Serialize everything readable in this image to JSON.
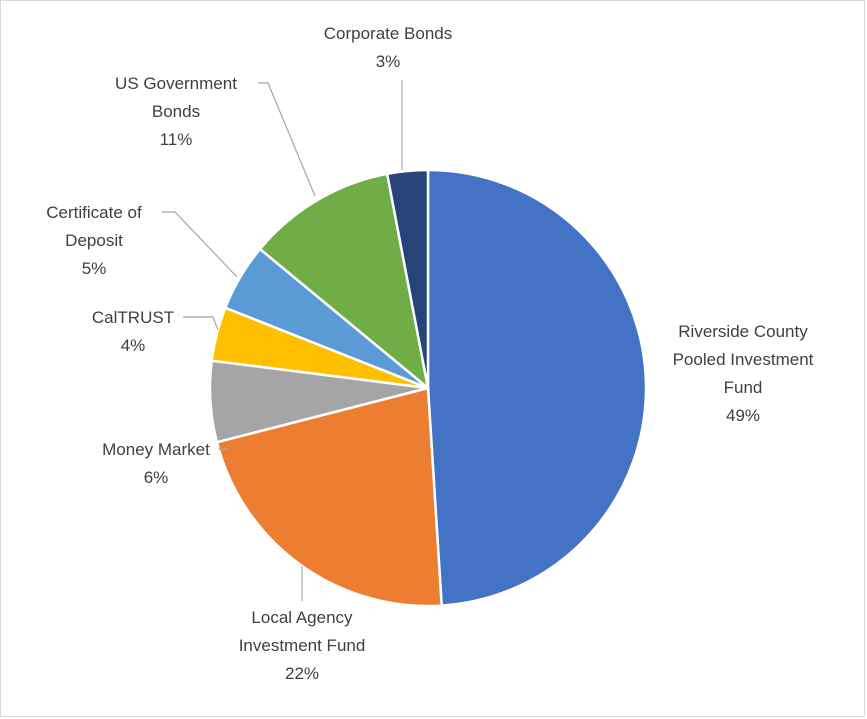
{
  "chart_data": {
    "type": "pie",
    "title": "",
    "slices": [
      {
        "name": "Riverside County Pooled Investment Fund",
        "label_lines": [
          "Riverside County",
          "Pooled Investment",
          "Fund"
        ],
        "value": 49,
        "value_label": "49%",
        "color": "#4472c4"
      },
      {
        "name": "Local Agency Investment Fund",
        "label_lines": [
          "Local Agency",
          "Investment Fund"
        ],
        "value": 22,
        "value_label": "22%",
        "color": "#ed7d31"
      },
      {
        "name": "Money Market",
        "label_lines": [
          "Money Market"
        ],
        "value": 6,
        "value_label": "6%",
        "color": "#a5a5a5"
      },
      {
        "name": "CalTRUST",
        "label_lines": [
          "CalTRUST"
        ],
        "value": 4,
        "value_label": "4%",
        "color": "#ffc000"
      },
      {
        "name": "Certificate of Deposit",
        "label_lines": [
          "Certificate of",
          "Deposit"
        ],
        "value": 5,
        "value_label": "5%",
        "color": "#5b9bd5"
      },
      {
        "name": "US Government Bonds",
        "label_lines": [
          "US Government",
          "Bonds"
        ],
        "value": 11,
        "value_label": "11%",
        "color": "#70ad47"
      },
      {
        "name": "Corporate Bonds",
        "label_lines": [
          "Corporate Bonds"
        ],
        "value": 3,
        "value_label": "3%",
        "color": "#264478"
      }
    ],
    "start": "12 o'clock",
    "direction": "clockwise",
    "legend": "none",
    "data_labels": "outside with leader lines"
  }
}
